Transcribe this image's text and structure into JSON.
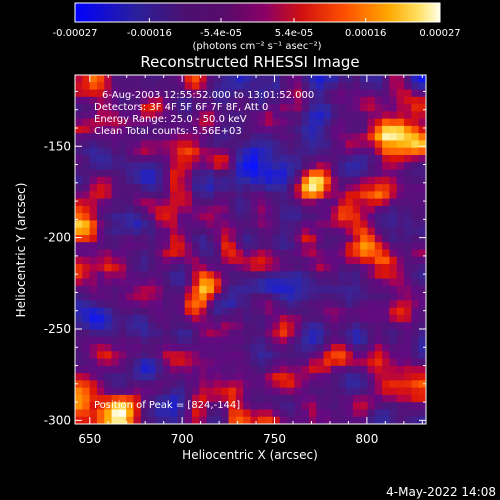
{
  "chart_data": {
    "type": "heatmap",
    "title": "Reconstructed RHESSI Image",
    "xlabel": "Heliocentric X (arcsec)",
    "ylabel": "Heliocentric Y (arcsec)",
    "xlim": [
      642,
      832
    ],
    "ylim": [
      -302,
      -111
    ],
    "x_ticks": [
      "650",
      "700",
      "750",
      "800"
    ],
    "y_ticks": [
      "-150",
      "-200",
      "-250",
      "-300"
    ],
    "x_tick_values": [
      650,
      700,
      750,
      800
    ],
    "y_tick_values": [
      -150,
      -200,
      -250,
      -300
    ],
    "colorbar": {
      "range": [
        -0.00027,
        0.00027
      ],
      "tick_labels": [
        "-0.00027",
        "-0.00016",
        "-5.4e-05",
        "5.4e-05",
        "0.00016",
        "0.00027"
      ],
      "tick_values": [
        -0.00027,
        -0.00016,
        -5.4e-05,
        5.4e-05,
        0.00016,
        0.00027
      ],
      "units_label": "(photons cm⁻² s⁻¹ asec⁻²)"
    },
    "annotations": [
      "6-Aug-2003 12:55:52.000 to 13:01:52.000",
      "Detectors: 3F 4F 5F 6F 7F 8F, Att 0",
      "Energy Range: 25.0 - 50.0 keV",
      "Clean     Total counts: 5.56E+03"
    ],
    "peak_label": "Position of Peak = [824,-144]",
    "peak_position": [
      824,
      -144
    ],
    "grid": false
  },
  "footer": {
    "date": "4-May-2022 14:08"
  },
  "colors": {
    "background": "#000000",
    "foreground": "#ffffff",
    "colormap": [
      "#0000ff",
      "#2a2a8c",
      "#44186a",
      "#700088",
      "#cc0000",
      "#ff6600",
      "#ffcc00",
      "#ffffe0"
    ]
  }
}
